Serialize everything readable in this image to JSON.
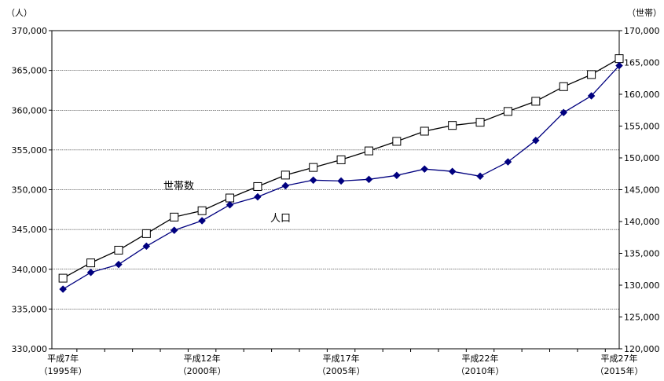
{
  "chart_data": {
    "type": "line",
    "y_left_unit": "（人）",
    "y_right_unit": "（世帯）",
    "x_labels": [
      {
        "index": 0,
        "line1": "平成7年",
        "line2": "（1995年）"
      },
      {
        "index": 5,
        "line1": "平成12年",
        "line2": "（2000年）"
      },
      {
        "index": 10,
        "line1": "平成17年",
        "line2": "（2005年）"
      },
      {
        "index": 15,
        "line1": "平成22年",
        "line2": "（2010年）"
      },
      {
        "index": 20,
        "line1": "平成27年",
        "line2": "（2015年）"
      }
    ],
    "x": [
      1995,
      1996,
      1997,
      1998,
      1999,
      2000,
      2001,
      2002,
      2003,
      2004,
      2005,
      2006,
      2007,
      2008,
      2009,
      2010,
      2011,
      2012,
      2013,
      2014,
      2015
    ],
    "ylim_left": [
      330000,
      370000
    ],
    "ylim_right": [
      120000,
      170000
    ],
    "y_left_ticks": [
      "330,000",
      "335,000",
      "340,000",
      "345,000",
      "350,000",
      "355,000",
      "360,000",
      "365,000",
      "370,000"
    ],
    "y_right_ticks": [
      "120,000",
      "125,000",
      "130,000",
      "135,000",
      "140,000",
      "145,000",
      "150,000",
      "155,000",
      "160,000",
      "165,000",
      "170,000"
    ],
    "grid": "horizontal",
    "series": [
      {
        "name": "世帯数",
        "axis": "right",
        "marker": "open-square",
        "color": "#000000",
        "values": [
          131100,
          133500,
          135500,
          138100,
          140700,
          141700,
          143700,
          145500,
          147300,
          148500,
          149700,
          151100,
          152600,
          154200,
          155100,
          155600,
          157300,
          158900,
          161200,
          163100,
          165600
        ]
      },
      {
        "name": "人口",
        "axis": "left",
        "marker": "filled-diamond",
        "color": "#00007f",
        "values": [
          337500,
          339600,
          340600,
          342900,
          344900,
          346100,
          348100,
          349100,
          350500,
          351200,
          351100,
          351300,
          351800,
          352600,
          352300,
          351700,
          353500,
          356200,
          359700,
          361800,
          365600
        ]
      }
    ]
  }
}
